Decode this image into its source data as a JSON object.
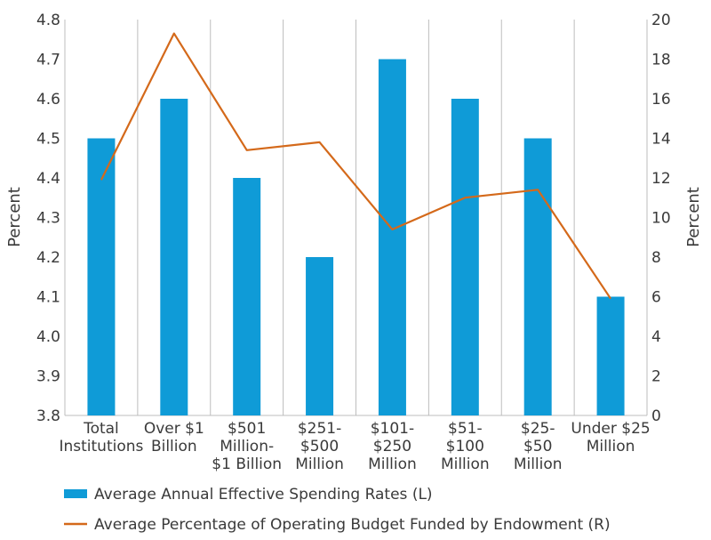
{
  "chart_data": {
    "type": "bar",
    "categories": [
      [
        "Total",
        "Institutions"
      ],
      [
        "Over $1",
        "Billion"
      ],
      [
        "$501",
        "Million-",
        "$1 Billion"
      ],
      [
        "$251-",
        "$500",
        "Million"
      ],
      [
        "$101-",
        "$250",
        "Million"
      ],
      [
        "$51-",
        "$100",
        "Million"
      ],
      [
        "$25-",
        "$50",
        "Million"
      ],
      [
        "Under $25",
        "Million"
      ]
    ],
    "series": [
      {
        "name": "Average Annual Effective Spending Rates (L)",
        "type": "bar",
        "axis": "left",
        "color": "#0f9bd7",
        "values": [
          4.5,
          4.6,
          4.4,
          4.2,
          4.7,
          4.6,
          4.5,
          4.1
        ]
      },
      {
        "name": "Average Percentage of Operating Budget Funded by Endowment (R)",
        "type": "line",
        "axis": "right",
        "color": "#d4691a",
        "values": [
          11.9,
          19.3,
          13.4,
          13.8,
          9.4,
          11.0,
          11.4,
          5.9
        ]
      }
    ],
    "y_left": {
      "label": "Percent",
      "range": [
        3.8,
        4.8
      ],
      "ticks": [
        "3.8",
        "3.9",
        "4.0",
        "4.1",
        "4.2",
        "4.3",
        "4.4",
        "4.5",
        "4.6",
        "4.7",
        "4.8"
      ]
    },
    "y_right": {
      "label": "Percent",
      "range": [
        0,
        20
      ],
      "ticks": [
        "0",
        "2",
        "4",
        "6",
        "8",
        "10",
        "12",
        "14",
        "16",
        "18",
        "20"
      ]
    },
    "grid": "vertical",
    "legend_position": "bottom",
    "colors": {
      "grid": "#bdbdbd",
      "text": "#3a3a3a"
    }
  }
}
